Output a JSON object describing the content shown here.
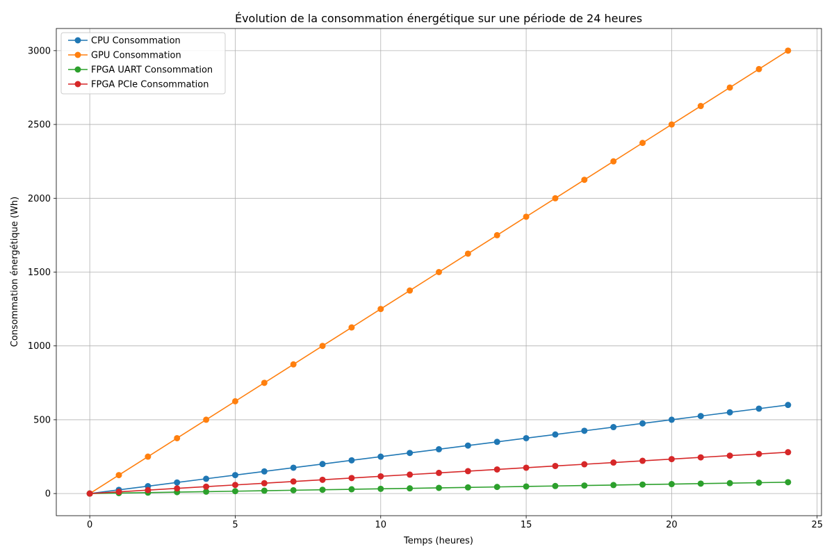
{
  "chart_data": {
    "type": "line",
    "title": "Évolution de la consommation énergétique sur une période de 24 heures",
    "xlabel": "Temps (heures)",
    "ylabel": "Consommation énergétique (Wh)",
    "xlim": [
      -1.15,
      25.15
    ],
    "ylim": [
      -150,
      3150
    ],
    "xticks": [
      0,
      5,
      10,
      15,
      20,
      25
    ],
    "yticks": [
      0,
      500,
      1000,
      1500,
      2000,
      2500,
      3000
    ],
    "grid": true,
    "legend_position": "top-left",
    "x": [
      0,
      1,
      2,
      3,
      4,
      5,
      6,
      7,
      8,
      9,
      10,
      11,
      12,
      13,
      14,
      15,
      16,
      17,
      18,
      19,
      20,
      21,
      22,
      23,
      24
    ],
    "series": [
      {
        "name": "CPU Consommation",
        "color": "#1f77b4",
        "values": [
          0,
          25,
          50,
          75,
          100,
          125,
          150,
          175,
          200,
          225,
          250,
          275,
          300,
          325,
          350,
          375,
          400,
          425,
          450,
          475,
          500,
          525,
          550,
          575,
          600
        ]
      },
      {
        "name": "GPU Consommation",
        "color": "#ff7f0e",
        "values": [
          0,
          125,
          250,
          375,
          500,
          625,
          750,
          875,
          1000,
          1125,
          1250,
          1375,
          1500,
          1625,
          1750,
          1875,
          2000,
          2125,
          2250,
          2375,
          2500,
          2625,
          2750,
          2875,
          3000
        ]
      },
      {
        "name": "FPGA UART Consommation",
        "color": "#2ca02c",
        "values": [
          0,
          3.2,
          6.4,
          9.6,
          12.8,
          16,
          19.2,
          22.4,
          25.6,
          28.8,
          32,
          35.2,
          38.4,
          41.6,
          44.8,
          48,
          51.2,
          54.4,
          57.6,
          60.8,
          64,
          67.2,
          70.4,
          73.6,
          76.8
        ]
      },
      {
        "name": "FPGA PCIe Consommation",
        "color": "#d62728",
        "values": [
          0,
          11.7,
          23.3,
          35,
          46.7,
          58.3,
          70,
          81.7,
          93.3,
          105,
          116.7,
          128.3,
          140,
          151.7,
          163.3,
          175,
          186.7,
          198.3,
          210,
          221.7,
          233.3,
          245,
          256.7,
          268.3,
          280
        ]
      }
    ]
  }
}
